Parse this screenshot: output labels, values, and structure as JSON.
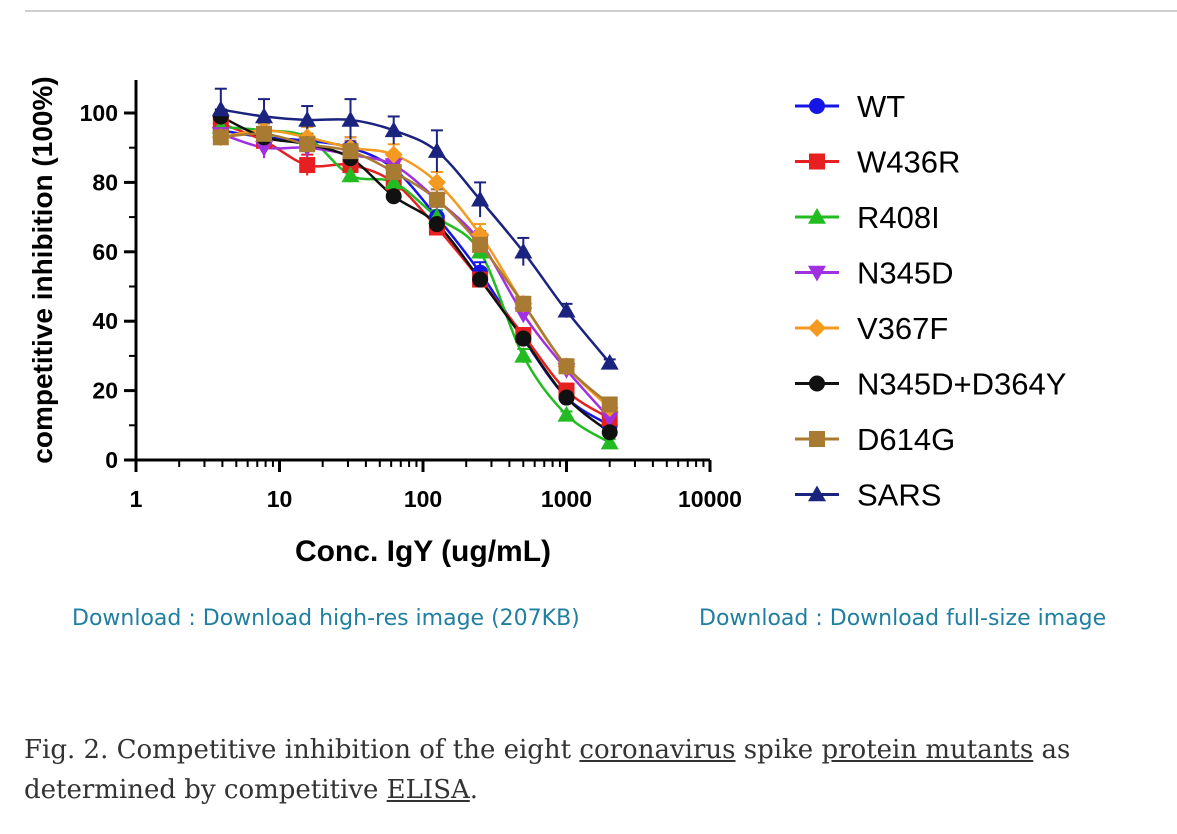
{
  "chart_data": {
    "type": "line",
    "xscale": "log",
    "xlim": [
      1,
      10000
    ],
    "ylim": [
      0,
      110
    ],
    "xlabel": "Conc. IgY (ug/mL)",
    "ylabel": "competitive inhibition (100%)",
    "x_ticks": [
      1,
      10,
      100,
      1000,
      10000
    ],
    "x_tick_labels": [
      "1",
      "10",
      "100",
      "1000",
      "10000"
    ],
    "y_ticks": [
      0,
      20,
      40,
      60,
      80,
      100
    ],
    "y_tick_labels": [
      "0",
      "20",
      "40",
      "60",
      "80",
      "100"
    ],
    "legend_position": "right",
    "x": [
      3.9,
      7.8,
      15.6,
      31.25,
      62.5,
      125,
      250,
      500,
      1000,
      2000
    ],
    "series": [
      {
        "name": "WT",
        "color": "#1515e6",
        "marker": "circle",
        "values": [
          95,
          93,
          92,
          90,
          84,
          70,
          54,
          35,
          18,
          10
        ],
        "errors": [
          3,
          4,
          2,
          3,
          3,
          3,
          3,
          2,
          2,
          1
        ]
      },
      {
        "name": "W436R",
        "color": "#e62020",
        "marker": "square",
        "values": [
          97,
          92,
          85,
          85,
          80,
          67,
          52,
          36,
          20,
          12
        ],
        "errors": [
          3,
          3,
          3,
          3,
          3,
          2,
          2,
          2,
          2,
          1
        ]
      },
      {
        "name": "R408I",
        "color": "#22bb22",
        "marker": "triangle-up",
        "values": [
          96,
          95,
          93,
          82,
          80,
          70,
          60,
          30,
          13,
          5
        ],
        "errors": [
          3,
          3,
          3,
          2,
          2,
          2,
          2,
          2,
          1,
          1
        ]
      },
      {
        "name": "N345D",
        "color": "#a030e0",
        "marker": "triangle-down",
        "values": [
          94,
          90,
          90,
          88,
          85,
          75,
          63,
          42,
          26,
          12
        ],
        "errors": [
          3,
          3,
          3,
          3,
          3,
          3,
          3,
          2,
          2,
          1
        ]
      },
      {
        "name": "V367F",
        "color": "#f59a20",
        "marker": "diamond",
        "values": [
          93,
          95,
          93,
          90,
          88,
          80,
          65,
          45,
          27,
          15
        ],
        "errors": [
          2,
          3,
          3,
          3,
          3,
          3,
          3,
          2,
          2,
          1
        ]
      },
      {
        "name": "N345D+D364Y",
        "color": "#111111",
        "marker": "circle",
        "values": [
          99,
          93,
          91,
          87,
          76,
          68,
          52,
          35,
          18,
          8
        ],
        "errors": [
          2,
          3,
          3,
          2,
          2,
          2,
          2,
          2,
          2,
          1
        ]
      },
      {
        "name": "D614G",
        "color": "#a87a32",
        "marker": "square",
        "values": [
          93,
          94,
          91,
          89,
          83,
          75,
          62,
          45,
          27,
          16
        ],
        "errors": [
          2,
          3,
          3,
          3,
          3,
          3,
          3,
          2,
          2,
          1
        ]
      },
      {
        "name": "SARS",
        "color": "#1a237e",
        "marker": "triangle-up",
        "values": [
          101,
          99,
          98,
          98,
          95,
          89,
          75,
          60,
          43,
          28
        ],
        "errors": [
          6,
          5,
          4,
          6,
          4,
          6,
          5,
          4,
          2,
          1
        ]
      }
    ]
  },
  "downloads": {
    "highres_label": "Download : Download high-res image (207KB)",
    "full_label": "Download : Download full-size image"
  },
  "caption": {
    "prefix": "Fig. 2. Competitive inhibition of the eight ",
    "link1": "coronavirus",
    "mid1": " spike ",
    "link2": "protein mutants",
    "mid2": " as determined by competitive ",
    "link3": "ELISA",
    "suffix": "."
  }
}
